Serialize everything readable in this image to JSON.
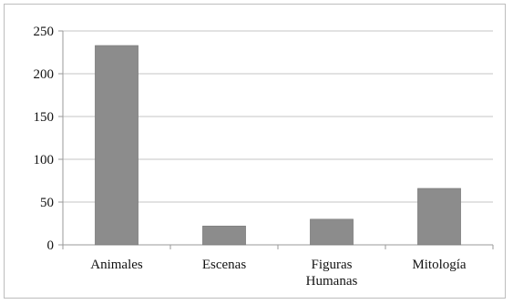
{
  "chart_data": {
    "type": "bar",
    "categories": [
      "Animales",
      "Escenas",
      "Figuras Humanas",
      "Mitología"
    ],
    "category_lines": [
      [
        "Animales"
      ],
      [
        "Escenas"
      ],
      [
        "Figuras",
        "Humanas"
      ],
      [
        "Mitología"
      ]
    ],
    "values": [
      233,
      22,
      30,
      66
    ],
    "ylim": [
      0,
      250
    ],
    "yticks": [
      0,
      50,
      100,
      150,
      200,
      250
    ],
    "grid": true,
    "legend": "none",
    "title": "",
    "xlabel": "",
    "ylabel": "",
    "colors": {
      "bar": "#8c8c8c",
      "bar_stroke": "#6f6f6f",
      "grid": "#c4c4c4",
      "axis": "#9a9a9a"
    }
  }
}
